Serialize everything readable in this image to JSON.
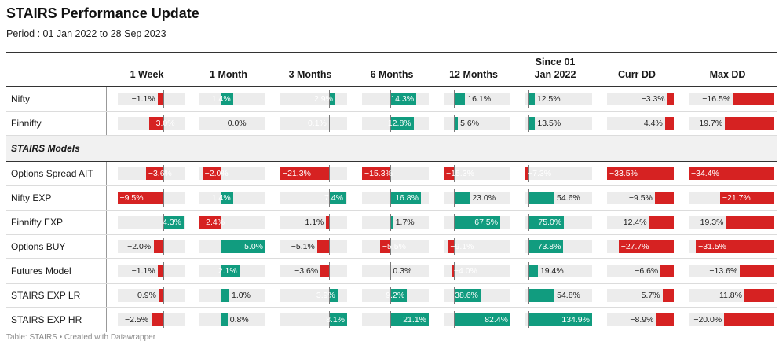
{
  "title": "STAIRS Performance Update",
  "subtitle": "Period : 01 Jan 2022 to 28 Sep 2023",
  "footer": "Table: STAIRS • Created with Datawrapper",
  "colors": {
    "positive": "#119c7f",
    "negative": "#d62222",
    "track": "#ececec"
  },
  "chart_data": {
    "type": "table",
    "columns": [
      "1 Week",
      "1 Month",
      "3 Months",
      "6 Months",
      "12 Months",
      "Since 01 Jan 2022",
      "Curr DD",
      "Max DD"
    ],
    "column_ranges": [
      [
        -9.5,
        4.3
      ],
      [
        -2.4,
        5.0
      ],
      [
        -21.3,
        8.1
      ],
      [
        -15.3,
        21.1
      ],
      [
        -15.3,
        82.4
      ],
      [
        -7.3,
        134.9
      ],
      [
        -33.5,
        0
      ],
      [
        -34.4,
        0
      ]
    ],
    "groups": [
      {
        "label": "",
        "rows": [
          {
            "name": "Nifty",
            "values": [
              -1.1,
              1.4,
              2.9,
              14.3,
              16.1,
              12.5,
              -3.3,
              -16.5
            ],
            "labels": [
              "−1.1%",
              "1.4%",
              "2.9%",
              "14.3%",
              "16.1%",
              "12.5%",
              "−3.3%",
              "−16.5%"
            ]
          },
          {
            "name": "Finnifty",
            "values": [
              -3.0,
              -0.0,
              0.1,
              12.8,
              5.6,
              13.5,
              -4.4,
              -19.7
            ],
            "labels": [
              "−3.0%",
              "−0.0%",
              "0.1%",
              "12.8%",
              "5.6%",
              "13.5%",
              "−4.4%",
              "−19.7%"
            ]
          }
        ]
      },
      {
        "label": "STAIRS Models",
        "rows": [
          {
            "name": "Options Spread AIT",
            "values": [
              -3.6,
              -2.0,
              -21.3,
              -15.3,
              -15.3,
              -7.3,
              -33.5,
              -34.4
            ],
            "labels": [
              "−3.6%",
              "−2.0%",
              "−21.3%",
              "−15.3%",
              "−15.3%",
              "−7.3%",
              "−33.5%",
              "−34.4%"
            ]
          },
          {
            "name": "Nifty EXP",
            "values": [
              -9.5,
              1.4,
              7.4,
              16.8,
              23.0,
              54.6,
              -9.5,
              -21.7
            ],
            "labels": [
              "−9.5%",
              "1.4%",
              "7.4%",
              "16.8%",
              "23.0%",
              "54.6%",
              "−9.5%",
              "−21.7%"
            ]
          },
          {
            "name": "Finnifty EXP",
            "values": [
              4.3,
              -2.4,
              -1.1,
              1.7,
              67.5,
              75.0,
              -12.4,
              -19.3
            ],
            "labels": [
              "4.3%",
              "−2.4%",
              "−1.1%",
              "1.7%",
              "67.5%",
              "75.0%",
              "−12.4%",
              "−19.3%"
            ]
          },
          {
            "name": "Options BUY",
            "values": [
              -2.0,
              5.0,
              -5.1,
              -5.5,
              -9.1,
              73.8,
              -27.7,
              -31.5
            ],
            "labels": [
              "−2.0%",
              "5.0%",
              "−5.1%",
              "−5.5%",
              "−9.1%",
              "73.8%",
              "−27.7%",
              "−31.5%"
            ]
          },
          {
            "name": "Futures Model",
            "values": [
              -1.1,
              2.1,
              -3.6,
              0.3,
              -4.0,
              19.4,
              -6.6,
              -13.6
            ],
            "labels": [
              "−1.1%",
              "2.1%",
              "−3.6%",
              "0.3%",
              "−4.0%",
              "19.4%",
              "−6.6%",
              "−13.6%"
            ]
          },
          {
            "name": "STAIRS EXP LR",
            "values": [
              -0.9,
              1.0,
              3.9,
              9.2,
              38.6,
              54.8,
              -5.7,
              -11.8
            ],
            "labels": [
              "−0.9%",
              "1.0%",
              "3.9%",
              "9.2%",
              "38.6%",
              "54.8%",
              "−5.7%",
              "−11.8%"
            ]
          },
          {
            "name": "STAIRS EXP HR",
            "values": [
              -2.5,
              0.8,
              8.1,
              21.1,
              82.4,
              134.9,
              -8.9,
              -20.0
            ],
            "labels": [
              "−2.5%",
              "0.8%",
              "8.1%",
              "21.1%",
              "82.4%",
              "134.9%",
              "−8.9%",
              "−20.0%"
            ]
          }
        ]
      }
    ]
  }
}
